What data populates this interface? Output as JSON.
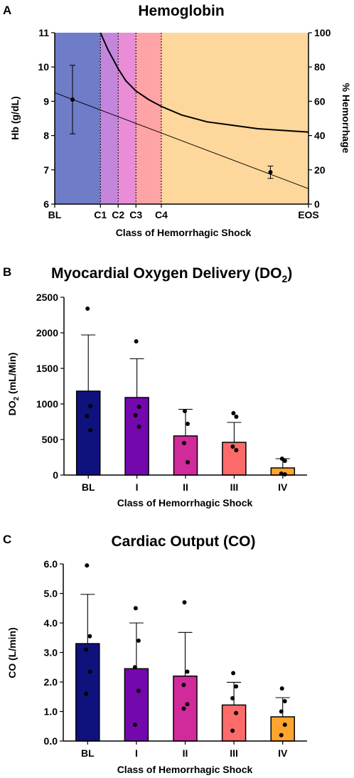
{
  "panels": {
    "a": {
      "letter": "A",
      "title": "Hemoglobin",
      "xlabel": "Class of Hemorrhagic Shock",
      "ylabel_left": "Hb (g/dL)",
      "ylabel_right": "% Hemorrhage"
    },
    "b": {
      "letter": "B",
      "title_main": "Myocardial Oxygen Delivery (DO",
      "title_sub": "2",
      "title_end": ")",
      "ylabel_main": "DO",
      "ylabel_sub": "2",
      "ylabel_end": " (mL/Min)",
      "xlabel": "Class of Hemorrhagic Shock"
    },
    "c": {
      "letter": "C",
      "title": "Cardiac Output (CO)",
      "ylabel": "CO (L/min)",
      "xlabel": "Class of Hemorrhagic Shock"
    }
  },
  "chart_data": [
    {
      "id": "a",
      "type": "line",
      "title": "Hemoglobin",
      "xlabel": "Class of Hemorrhagic Shock",
      "ylabel": "Hb (g/dL)",
      "ylabel_right": "% Hemorrhage",
      "x_ticks": [
        "BL",
        "C1",
        "C2",
        "C3",
        "C4",
        "EOS"
      ],
      "x_tick_positions": [
        0,
        18,
        25,
        32,
        42,
        100
      ],
      "ylim": [
        6,
        11
      ],
      "y_ticks": [
        6,
        7,
        8,
        9,
        10,
        11
      ],
      "ylim_right": [
        0,
        100
      ],
      "y_ticks_right": [
        0,
        20,
        40,
        60,
        80,
        100
      ],
      "bands": [
        {
          "from": 0,
          "to": 18,
          "color": "#6f7cc8"
        },
        {
          "from": 18,
          "to": 25,
          "color": "#c486dd"
        },
        {
          "from": 25,
          "to": 32,
          "color": "#e88dd6"
        },
        {
          "from": 32,
          "to": 42,
          "color": "#ffa4a6"
        },
        {
          "from": 42,
          "to": 100,
          "color": "#fdd79b"
        }
      ],
      "band_dividers": [
        18,
        25,
        32,
        42
      ],
      "hb_line": {
        "x": [
          0,
          100
        ],
        "y": [
          9.25,
          6.45
        ]
      },
      "hb_points": [
        {
          "x": 7,
          "y": 9.05,
          "err": 1.0
        },
        {
          "x": 85,
          "y": 6.93,
          "err": 0.18
        }
      ],
      "hemorrhage_curve": {
        "x": [
          18,
          21,
          25,
          28,
          32,
          37,
          42,
          50,
          60,
          70,
          80,
          90,
          100
        ],
        "y": [
          100,
          90,
          79,
          72,
          66,
          61,
          57,
          52,
          48,
          46,
          44,
          43,
          42
        ]
      }
    },
    {
      "id": "b",
      "type": "bar",
      "title": "Myocardial Oxygen Delivery (DO2)",
      "xlabel": "Class of Hemorrhagic Shock",
      "ylabel": "DO2 (mL/Min)",
      "categories": [
        "BL",
        "I",
        "II",
        "III",
        "IV"
      ],
      "values": [
        1180,
        1090,
        550,
        460,
        100
      ],
      "errors": [
        790,
        545,
        375,
        280,
        130
      ],
      "colors": [
        "#0f127c",
        "#7308ad",
        "#d12a9a",
        "#fd6a6a",
        "#fda52c"
      ],
      "points": [
        [
          2340,
          970,
          830,
          630
        ],
        [
          1880,
          960,
          840,
          680
        ],
        [
          900,
          720,
          450,
          180
        ],
        [
          870,
          820,
          400,
          350
        ],
        [
          230,
          200,
          20,
          10
        ]
      ],
      "ylim": [
        0,
        2500
      ],
      "y_ticks": [
        0,
        500,
        1000,
        1500,
        2000,
        2500
      ]
    },
    {
      "id": "c",
      "type": "bar",
      "title": "Cardiac Output (CO)",
      "xlabel": "Class of Hemorrhagic Shock",
      "ylabel": "CO (L/min)",
      "categories": [
        "BL",
        "I",
        "II",
        "III",
        "IV"
      ],
      "values": [
        3.3,
        2.45,
        2.2,
        1.22,
        0.82
      ],
      "errors": [
        1.67,
        1.55,
        1.48,
        0.77,
        0.65
      ],
      "colors": [
        "#0f127c",
        "#7308ad",
        "#d12a9a",
        "#fd6a6a",
        "#fda52c"
      ],
      "points": [
        [
          5.95,
          3.55,
          3.1,
          2.35,
          1.6
        ],
        [
          4.5,
          3.4,
          2.5,
          1.7,
          0.55
        ],
        [
          4.7,
          2.35,
          1.9,
          1.25,
          1.1
        ],
        [
          2.3,
          1.85,
          1.45,
          0.95,
          0.35
        ],
        [
          1.78,
          1.35,
          1.0,
          0.55,
          0.2
        ]
      ],
      "ylim": [
        0,
        6
      ],
      "y_ticks": [
        "0.0",
        "1.0",
        "2.0",
        "3.0",
        "4.0",
        "5.0",
        "6.0"
      ]
    }
  ]
}
